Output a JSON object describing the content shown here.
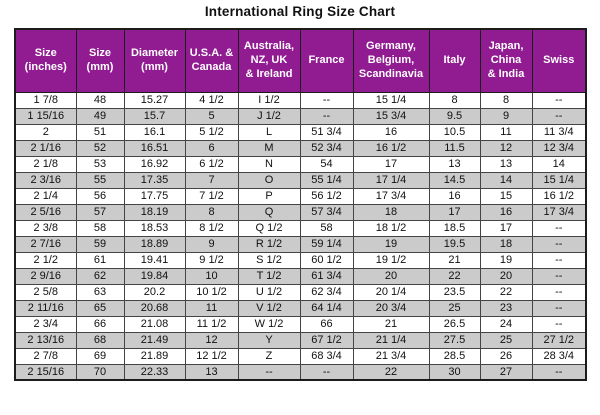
{
  "title": "International Ring Size Chart",
  "colors": {
    "header_bg": "#911b91",
    "header_text": "#ffffff",
    "row_alt_bg": "#cbcbcb",
    "border": "#1c1c1c",
    "text": "#111111"
  },
  "table": {
    "headers": [
      "Size\n(inches)",
      "Size\n(mm)",
      "Diameter\n(mm)",
      "U.S.A. &\nCanada",
      "Australia,\nNZ, UK\n& Ireland",
      "France",
      "Germany,\nBelgium,\nScandinavia",
      "Italy",
      "Japan,\nChina\n& India",
      "Swiss"
    ]
  },
  "chart_data": {
    "type": "table",
    "title": "International Ring Size Chart",
    "columns": [
      "Size (inches)",
      "Size (mm)",
      "Diameter (mm)",
      "U.S.A. & Canada",
      "Australia, NZ, UK & Ireland",
      "France",
      "Germany, Belgium, Scandinavia",
      "Italy",
      "Japan, China & India",
      "Swiss"
    ],
    "rows": [
      [
        "1 7/8",
        "48",
        "15.27",
        "4 1/2",
        "I 1/2",
        "--",
        "15 1/4",
        "8",
        "8",
        "--"
      ],
      [
        "1 15/16",
        "49",
        "15.7",
        "5",
        "J 1/2",
        "--",
        "15 3/4",
        "9.5",
        "9",
        "--"
      ],
      [
        "2",
        "51",
        "16.1",
        "5 1/2",
        "L",
        "51 3/4",
        "16",
        "10.5",
        "11",
        "11 3/4"
      ],
      [
        "2 1/16",
        "52",
        "16.51",
        "6",
        "M",
        "52 3/4",
        "16 1/2",
        "11.5",
        "12",
        "12 3/4"
      ],
      [
        "2 1/8",
        "53",
        "16.92",
        "6 1/2",
        "N",
        "54",
        "17",
        "13",
        "13",
        "14"
      ],
      [
        "2 3/16",
        "55",
        "17.35",
        "7",
        "O",
        "55 1/4",
        "17 1/4",
        "14.5",
        "14",
        "15 1/4"
      ],
      [
        "2 1/4",
        "56",
        "17.75",
        "7 1/2",
        "P",
        "56 1/2",
        "17 3/4",
        "16",
        "15",
        "16 1/2"
      ],
      [
        "2 5/16",
        "57",
        "18.19",
        "8",
        "Q",
        "57 3/4",
        "18",
        "17",
        "16",
        "17 3/4"
      ],
      [
        "2 3/8",
        "58",
        "18.53",
        "8 1/2",
        "Q 1/2",
        "58",
        "18 1/2",
        "18.5",
        "17",
        "--"
      ],
      [
        "2 7/16",
        "59",
        "18.89",
        "9",
        "R 1/2",
        "59 1/4",
        "19",
        "19.5",
        "18",
        "--"
      ],
      [
        "2 1/2",
        "61",
        "19.41",
        "9 1/2",
        "S 1/2",
        "60 1/2",
        "19 1/2",
        "21",
        "19",
        "--"
      ],
      [
        "2 9/16",
        "62",
        "19.84",
        "10",
        "T 1/2",
        "61 3/4",
        "20",
        "22",
        "20",
        "--"
      ],
      [
        "2 5/8",
        "63",
        "20.2",
        "10 1/2",
        "U 1/2",
        "62 3/4",
        "20 1/4",
        "23.5",
        "22",
        "--"
      ],
      [
        "2 11/16",
        "65",
        "20.68",
        "11",
        "V 1/2",
        "64 1/4",
        "20 3/4",
        "25",
        "23",
        "--"
      ],
      [
        "2 3/4",
        "66",
        "21.08",
        "11 1/2",
        "W 1/2",
        "66",
        "21",
        "26.5",
        "24",
        "--"
      ],
      [
        "2 13/16",
        "68",
        "21.49",
        "12",
        "Y",
        "67 1/2",
        "21 1/4",
        "27.5",
        "25",
        "27 1/2"
      ],
      [
        "2 7/8",
        "69",
        "21.89",
        "12 1/2",
        "Z",
        "68 3/4",
        "21 3/4",
        "28.5",
        "26",
        "28 3/4"
      ],
      [
        "2 15/16",
        "70",
        "22.33",
        "13",
        "--",
        "--",
        "22",
        "30",
        "27",
        "--"
      ]
    ]
  }
}
